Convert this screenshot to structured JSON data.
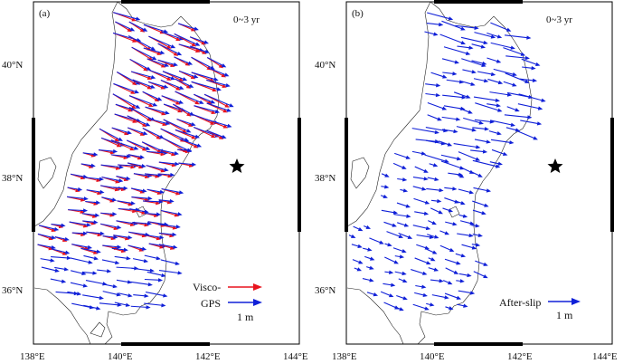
{
  "panels": [
    {
      "tag": "(a)",
      "period": "0~3 yr",
      "legend": [
        {
          "label": "Visco-",
          "color": "#e8141e"
        },
        {
          "label": "GPS",
          "color": "#1020d8"
        }
      ],
      "scale_label": "1 m"
    },
    {
      "tag": "(b)",
      "period": "0~3 yr",
      "legend": [
        {
          "label": "After-slip",
          "color": "#1020d8"
        }
      ],
      "scale_label": "1 m"
    }
  ],
  "axes": {
    "lon_ticks": [
      "138°E",
      "140°E",
      "142°E",
      "144°E"
    ],
    "lat_ticks": [
      "40°N",
      "38°N",
      "36°N"
    ]
  },
  "map_extent": {
    "lon": [
      138,
      144
    ],
    "lat": [
      35,
      41
    ]
  },
  "epicenter": {
    "lon": 142.6,
    "lat": 38.2,
    "icon": "star-icon"
  },
  "colors": {
    "visco": "#e8141e",
    "gps": "#1020d8",
    "afterslip": "#1020d8"
  }
}
